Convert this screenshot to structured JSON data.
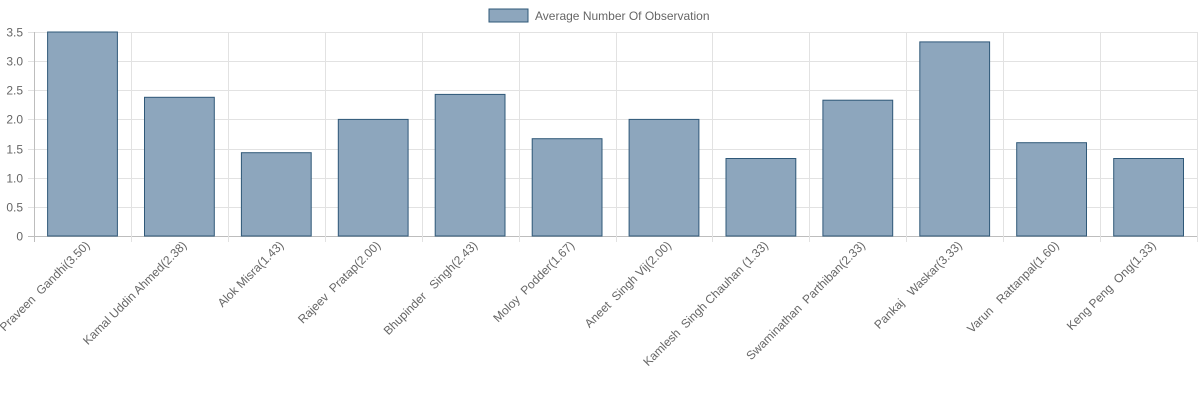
{
  "chart_data": {
    "type": "bar",
    "legend": {
      "position": "top",
      "series_name": "Average Number Of Observation"
    },
    "categories": [
      "Praveen  Gandhi(3.50)",
      "Kamal Uddin Ahmed(2.38)",
      "Alok Misra(1.43)",
      "Rajeev  Pratap(2.00)",
      "Bhupinder   Singh(2.43)",
      "Moloy  Podder(1.67)",
      "Aneet  Singh Vij(2.00)",
      "Kamlesh  Singh Chauhan (1.33)",
      "Swaminathan  Parthiban(2.33)",
      "Pankaj   Waskar(3.33)",
      "Varun   Rattanpal(1.60)",
      "Keng Peng  Ong(1.33)"
    ],
    "series": [
      {
        "name": "Average Number Of Observation",
        "values": [
          3.5,
          2.38,
          1.43,
          2.0,
          2.43,
          1.67,
          2.0,
          1.33,
          2.33,
          3.33,
          1.6,
          1.33
        ]
      }
    ],
    "y_ticks": [
      "0",
      "0.5",
      "1.0",
      "1.5",
      "2.0",
      "2.5",
      "3.0",
      "3.5"
    ],
    "ylim": [
      0,
      3.5
    ],
    "grid": true,
    "colors": {
      "bar_fill": "#8da6bd",
      "bar_stroke": "#2f5878",
      "grid": "#e2e2e2",
      "text": "#666666"
    }
  }
}
